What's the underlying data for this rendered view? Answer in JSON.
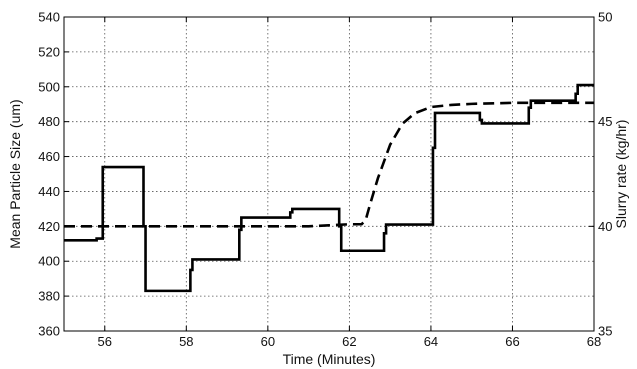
{
  "chart_data": {
    "type": "line",
    "title": "",
    "xlabel": "Time (Minutes)",
    "ylabel_left": "Mean Particle Size (um)",
    "ylabel_right": "Slurry rate (kg/hr)",
    "xlim": [
      55,
      68
    ],
    "ylim_left": [
      360,
      540
    ],
    "ylim_right": [
      35,
      50
    ],
    "xticks": [
      56,
      58,
      60,
      62,
      64,
      66,
      68
    ],
    "yticks_left": [
      360,
      380,
      400,
      420,
      440,
      460,
      480,
      500,
      520,
      540
    ],
    "yticks_right": [
      35,
      40,
      45,
      50
    ],
    "grid": true,
    "grid_style": "dotted",
    "series": [
      {
        "axis": "left",
        "style": "solid",
        "color": "#000000",
        "x": [
          55.0,
          55.8,
          55.8,
          55.95,
          55.95,
          56.95,
          56.95,
          57.0,
          57.0,
          58.1,
          58.1,
          58.15,
          58.15,
          59.3,
          59.3,
          59.35,
          59.35,
          60.55,
          60.55,
          60.6,
          60.6,
          61.75,
          61.75,
          61.8,
          61.8,
          62.85,
          62.85,
          62.9,
          62.9,
          64.05,
          64.05,
          64.1,
          64.1,
          65.2,
          65.2,
          65.25,
          65.25,
          66.4,
          66.4,
          66.45,
          66.45,
          67.55,
          67.55,
          67.6,
          67.6,
          68.0
        ],
        "y": [
          412,
          412,
          413,
          413,
          454,
          454,
          420,
          420,
          383,
          383,
          395,
          395,
          401,
          401,
          418,
          418,
          425,
          425,
          428,
          428,
          430,
          430,
          420,
          420,
          406,
          406,
          416,
          416,
          421,
          421,
          465,
          465,
          485,
          485,
          481,
          481,
          479,
          479,
          488,
          488,
          492,
          492,
          496,
          496,
          501,
          501
        ]
      },
      {
        "axis": "right",
        "style": "dashed",
        "color": "#000000",
        "x": [
          55.0,
          61.0,
          61.5,
          62.0,
          62.3,
          62.4,
          62.5,
          62.7,
          63.0,
          63.3,
          63.6,
          64.0,
          64.5,
          65.0,
          66.0,
          68.0
        ],
        "y": [
          40.0,
          40.0,
          40.05,
          40.1,
          40.1,
          40.3,
          41.0,
          42.3,
          43.9,
          44.9,
          45.4,
          45.7,
          45.8,
          45.85,
          45.9,
          45.9
        ]
      }
    ]
  }
}
